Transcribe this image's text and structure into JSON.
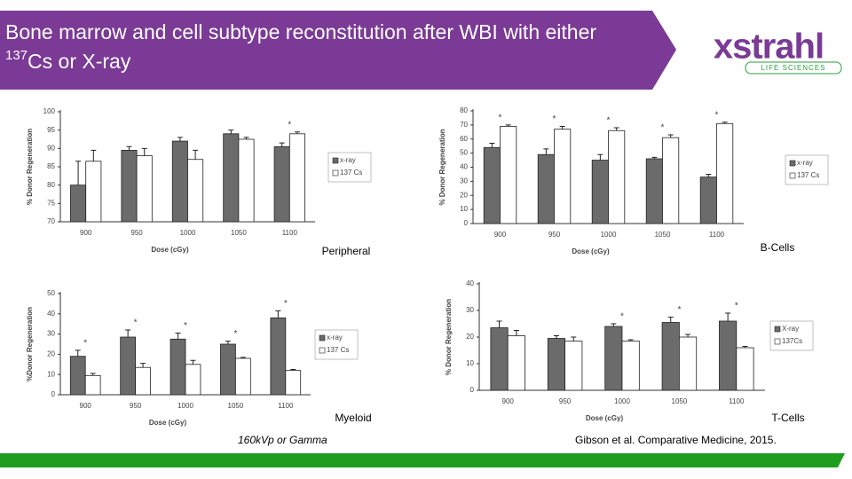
{
  "slide": {
    "title_start": "Bone marrow and cell subtype reconstitution after WBI with either ",
    "title_sup": "137",
    "title_end": "Cs or X-ray",
    "logo": {
      "name": "xstrahl",
      "tagline": "LIFE SCIENCES"
    },
    "footnote_left": "160kVp or Gamma",
    "footnote_right": "Gibson et al. Comparative Medicine, 2015."
  },
  "chart_data": [
    {
      "type": "bar",
      "caption": "Peripheral",
      "x_label": "Dose (cGy)",
      "y_label": "% Donor Regeneration",
      "categories": [
        "900",
        "950",
        "1000",
        "1050",
        "1100"
      ],
      "series": [
        {
          "name": "x-ray",
          "color": "#6b6b6b",
          "values": [
            80,
            89.5,
            92,
            94,
            90.5
          ],
          "errors": [
            6.5,
            1,
            1,
            1,
            1
          ]
        },
        {
          "name": "137 Cs",
          "color": "#ffffff",
          "values": [
            86.5,
            88,
            87,
            92.5,
            94
          ],
          "errors": [
            3,
            2,
            2.5,
            0.5,
            0.5
          ]
        }
      ],
      "significance": [
        null,
        null,
        null,
        null,
        "*"
      ],
      "ylim": [
        70,
        100
      ],
      "yticks": [
        70,
        75,
        80,
        85,
        90,
        95,
        100
      ],
      "grid": false
    },
    {
      "type": "bar",
      "caption": "B-Cells",
      "x_label": "Dose (cGy)",
      "y_label": "% Donor Regeneration",
      "categories": [
        "900",
        "950",
        "1000",
        "1050",
        "1100"
      ],
      "series": [
        {
          "name": "x-ray",
          "color": "#6b6b6b",
          "values": [
            54,
            49,
            45,
            46,
            33
          ],
          "errors": [
            3,
            4,
            4,
            1,
            2
          ]
        },
        {
          "name": "137 Cs",
          "color": "#ffffff",
          "values": [
            69,
            67,
            66,
            61,
            71
          ],
          "errors": [
            1,
            2,
            2,
            2,
            1
          ]
        }
      ],
      "significance": [
        "*",
        "*",
        "*",
        "*",
        "*"
      ],
      "ylim": [
        0,
        80
      ],
      "yticks": [
        0,
        10,
        20,
        30,
        40,
        50,
        60,
        70,
        80
      ],
      "grid": false
    },
    {
      "type": "bar",
      "caption": "Myeloid",
      "x_label": "Dose (cGy)",
      "y_label": "%Donor Regeneration",
      "categories": [
        "900",
        "950",
        "1000",
        "1050",
        "1100"
      ],
      "series": [
        {
          "name": "x-ray",
          "color": "#6b6b6b",
          "values": [
            19,
            28.5,
            27.5,
            25,
            38
          ],
          "errors": [
            3,
            3.5,
            3,
            1.5,
            3.5
          ]
        },
        {
          "name": "137 Cs",
          "color": "#ffffff",
          "values": [
            9.5,
            13.5,
            15,
            18,
            12
          ],
          "errors": [
            1,
            2,
            2,
            0.5,
            0.5
          ]
        }
      ],
      "significance": [
        "*",
        "*",
        "*",
        "*",
        "*"
      ],
      "ylim": [
        0,
        50
      ],
      "yticks": [
        0,
        10,
        20,
        30,
        40,
        50
      ],
      "grid": false
    },
    {
      "type": "bar",
      "caption": "T-Cells",
      "x_label": "Dose (cGy)",
      "y_label": "% Donor Regeneration",
      "categories": [
        "900",
        "950",
        "1000",
        "1050",
        "1100"
      ],
      "series": [
        {
          "name": "X-ray",
          "color": "#6b6b6b",
          "values": [
            23.5,
            19.5,
            24,
            25.5,
            26
          ],
          "errors": [
            2.5,
            1,
            1,
            2,
            3
          ]
        },
        {
          "name": "137Cs",
          "color": "#ffffff",
          "values": [
            20.5,
            18.5,
            18.5,
            20,
            16
          ],
          "errors": [
            2,
            1.5,
            0.5,
            1,
            0.5
          ]
        }
      ],
      "significance": [
        null,
        null,
        "*",
        "*",
        "*"
      ],
      "ylim": [
        0,
        40
      ],
      "yticks": [
        0,
        10,
        20,
        30,
        40
      ],
      "grid": false
    }
  ]
}
